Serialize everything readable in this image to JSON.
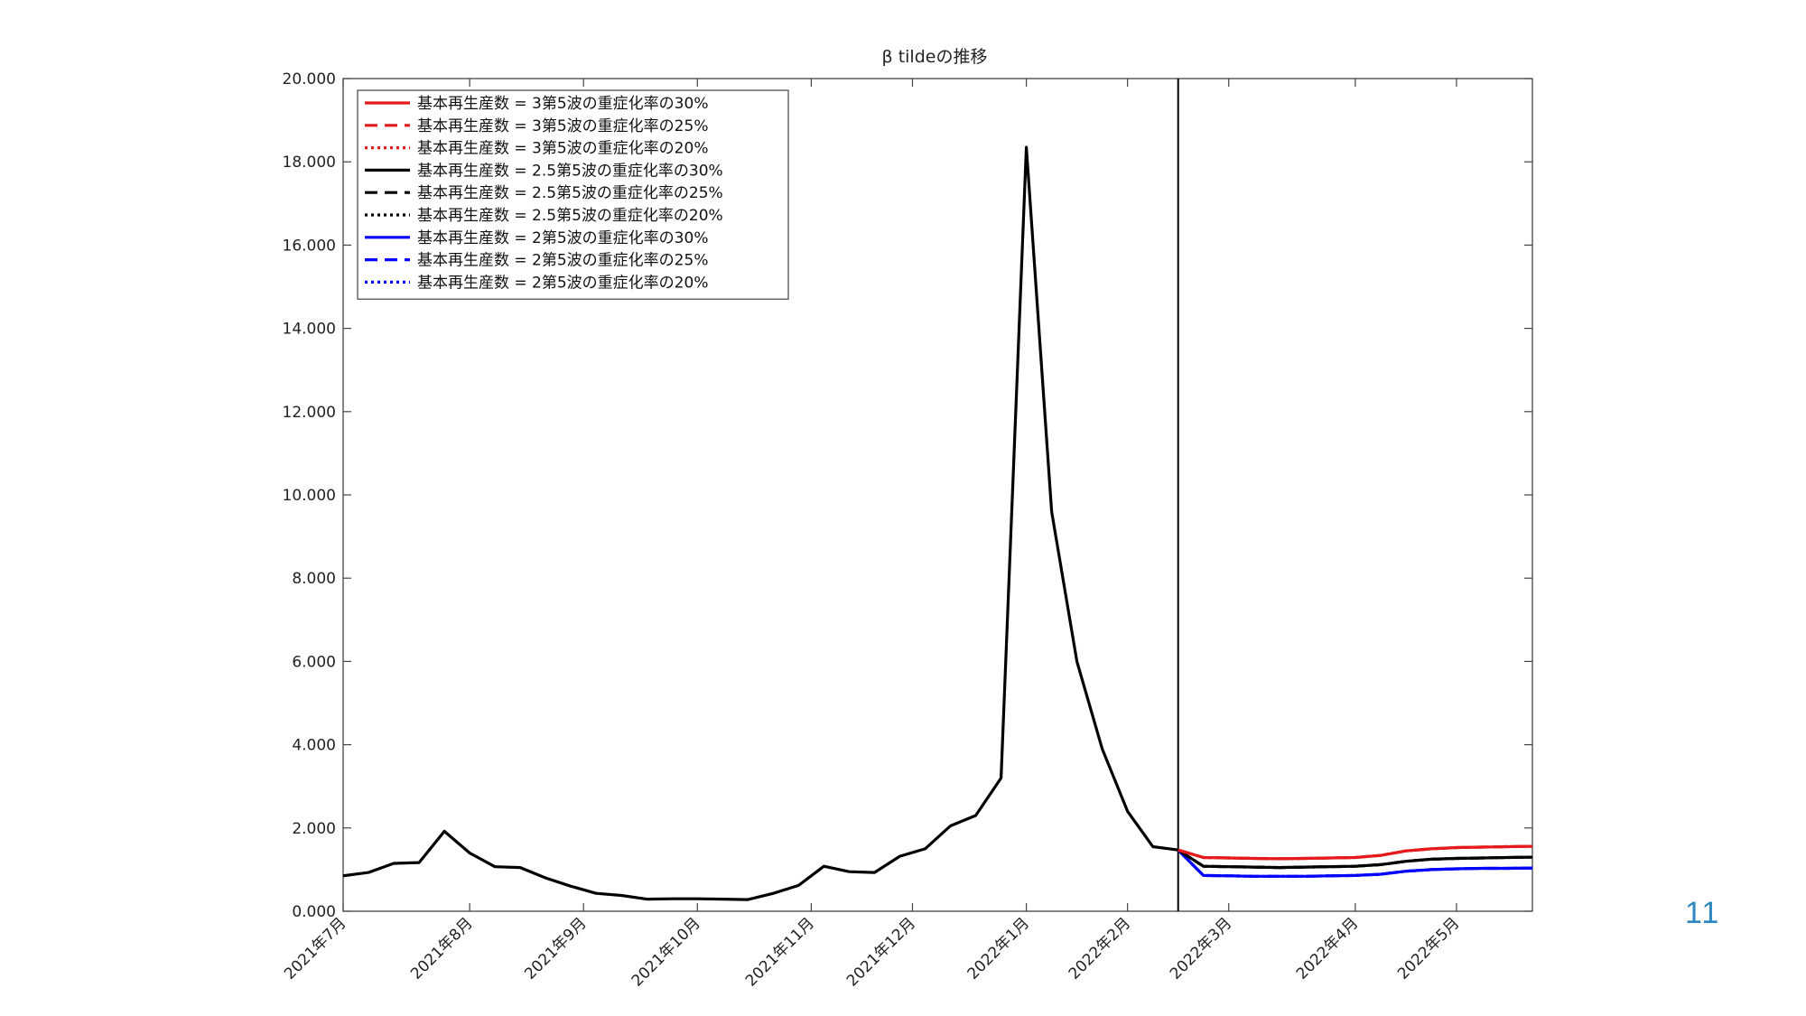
{
  "page_number": "11",
  "chart_data": {
    "type": "line",
    "title": "β tildeの推移",
    "xlabel": "",
    "ylabel": "",
    "ylim": [
      0,
      20
    ],
    "y_ticks": [
      "0.000",
      "2.000",
      "4.000",
      "6.000",
      "8.000",
      "10.000",
      "12.000",
      "14.000",
      "16.000",
      "18.000",
      "20.000"
    ],
    "x_range_weeks": [
      0,
      47
    ],
    "x_ticks": [
      {
        "label": "2021年7月",
        "week": 0
      },
      {
        "label": "2021年8月",
        "week": 5
      },
      {
        "label": "2021年9月",
        "week": 9.5
      },
      {
        "label": "2021年10月",
        "week": 14
      },
      {
        "label": "2021年11月",
        "week": 18.5
      },
      {
        "label": "2021年12月",
        "week": 22.5
      },
      {
        "label": "2022年1月",
        "week": 27
      },
      {
        "label": "2022年2月",
        "week": 31
      },
      {
        "label": "2022年3月",
        "week": 35
      },
      {
        "label": "2022年4月",
        "week": 40
      },
      {
        "label": "2022年5月",
        "week": 44
      }
    ],
    "forecast_start_week": 33,
    "grid": false,
    "legend_position": "top-left",
    "history": {
      "x": [
        0,
        1,
        2,
        3,
        4,
        5,
        6,
        7,
        8,
        9,
        10,
        11,
        12,
        13,
        14,
        15,
        16,
        17,
        18,
        19,
        20,
        21,
        22,
        23,
        24,
        25,
        26,
        27,
        28,
        29,
        30,
        31,
        32,
        33
      ],
      "y": [
        0.85,
        0.93,
        1.15,
        1.17,
        1.92,
        1.4,
        1.07,
        1.05,
        0.8,
        0.6,
        0.43,
        0.38,
        0.29,
        0.3,
        0.3,
        0.29,
        0.28,
        0.43,
        0.62,
        1.08,
        0.95,
        0.93,
        1.32,
        1.5,
        2.05,
        2.3,
        3.2,
        18.35,
        9.6,
        6.0,
        3.9,
        2.4,
        1.55,
        1.47
      ]
    },
    "forecast_x": [
      33,
      34,
      35,
      36,
      37,
      38,
      39,
      40,
      41,
      42,
      43,
      44,
      45,
      46,
      47
    ],
    "series": [
      {
        "name": "基本再生産数 = 3第5波の重症化率の30%",
        "color": "#e41a1c",
        "dash": "solid",
        "values": [
          1.47,
          1.29,
          1.28,
          1.27,
          1.26,
          1.27,
          1.28,
          1.29,
          1.34,
          1.45,
          1.5,
          1.53,
          1.54,
          1.55,
          1.56
        ]
      },
      {
        "name": "基本再生産数 = 3第5波の重症化率の25%",
        "color": "#e41a1c",
        "dash": "dashed",
        "values": [
          1.47,
          1.29,
          1.28,
          1.27,
          1.26,
          1.27,
          1.28,
          1.29,
          1.34,
          1.45,
          1.5,
          1.53,
          1.54,
          1.55,
          1.56
        ]
      },
      {
        "name": "基本再生産数 = 3第5波の重症化率の20%",
        "color": "#e41a1c",
        "dash": "dotted",
        "values": [
          1.47,
          1.29,
          1.28,
          1.27,
          1.26,
          1.27,
          1.28,
          1.29,
          1.34,
          1.45,
          1.5,
          1.53,
          1.54,
          1.55,
          1.56
        ]
      },
      {
        "name": "基本再生産数 = 2.5第5波の重症化率の30%",
        "color": "#000000",
        "dash": "solid",
        "values": [
          1.47,
          1.08,
          1.07,
          1.06,
          1.05,
          1.06,
          1.07,
          1.08,
          1.12,
          1.2,
          1.25,
          1.27,
          1.28,
          1.29,
          1.3
        ]
      },
      {
        "name": "基本再生産数 = 2.5第5波の重症化率の25%",
        "color": "#000000",
        "dash": "dashed",
        "values": [
          1.47,
          1.08,
          1.07,
          1.06,
          1.05,
          1.06,
          1.07,
          1.08,
          1.12,
          1.2,
          1.25,
          1.27,
          1.28,
          1.29,
          1.3
        ]
      },
      {
        "name": "基本再生産数 = 2.5第5波の重症化率の20%",
        "color": "#000000",
        "dash": "dotted",
        "values": [
          1.47,
          1.08,
          1.07,
          1.06,
          1.05,
          1.06,
          1.07,
          1.08,
          1.12,
          1.2,
          1.25,
          1.27,
          1.28,
          1.29,
          1.3
        ]
      },
      {
        "name": "基本再生産数 = 2第5波の重症化率の30%",
        "color": "#0000ff",
        "dash": "solid",
        "values": [
          1.47,
          0.86,
          0.85,
          0.84,
          0.84,
          0.84,
          0.85,
          0.86,
          0.89,
          0.96,
          1.0,
          1.02,
          1.03,
          1.03,
          1.04
        ]
      },
      {
        "name": "基本再生産数 = 2第5波の重症化率の25%",
        "color": "#0000ff",
        "dash": "dashed",
        "values": [
          1.47,
          0.86,
          0.85,
          0.84,
          0.84,
          0.84,
          0.85,
          0.86,
          0.89,
          0.96,
          1.0,
          1.02,
          1.03,
          1.03,
          1.04
        ]
      },
      {
        "name": "基本再生産数 = 2第5波の重症化率の20%",
        "color": "#0000ff",
        "dash": "dotted",
        "values": [
          1.47,
          0.86,
          0.85,
          0.84,
          0.84,
          0.84,
          0.85,
          0.86,
          0.89,
          0.96,
          1.0,
          1.02,
          1.03,
          1.03,
          1.04
        ]
      }
    ]
  }
}
